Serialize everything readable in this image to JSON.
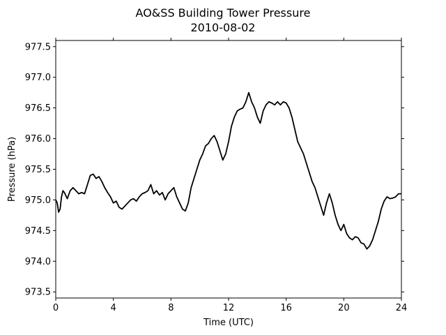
{
  "chart_data": {
    "type": "line",
    "title": "AO&SS Building Tower Pressure",
    "subtitle": "2010-08-02",
    "xlabel": "Time (UTC)",
    "ylabel": "Pressure (hPa)",
    "xlim": [
      0,
      24
    ],
    "ylim": [
      973.4,
      977.6
    ],
    "xticks": [
      0,
      4,
      8,
      12,
      16,
      20,
      24
    ],
    "xtick_labels": [
      "0",
      "4",
      "8",
      "12",
      "16",
      "20",
      "24"
    ],
    "yticks": [
      973.5,
      974.0,
      974.5,
      975.0,
      975.5,
      976.0,
      976.5,
      977.0,
      977.5
    ],
    "ytick_labels": [
      "973.5",
      "974.0",
      "974.5",
      "975.0",
      "975.5",
      "976.0",
      "976.5",
      "977.0",
      "977.5"
    ],
    "grid": false,
    "line_color": "#000000",
    "series": [
      {
        "x": [
          0.0,
          0.1,
          0.2,
          0.3,
          0.4,
          0.5,
          0.6,
          0.8,
          1.0,
          1.2,
          1.4,
          1.6,
          1.8,
          2.0,
          2.2,
          2.4,
          2.6,
          2.8,
          3.0,
          3.2,
          3.4,
          3.6,
          3.8,
          4.0,
          4.2,
          4.4,
          4.6,
          4.8,
          5.0,
          5.2,
          5.4,
          5.6,
          5.8,
          6.0,
          6.2,
          6.4,
          6.6,
          6.8,
          7.0,
          7.2,
          7.4,
          7.6,
          7.8,
          8.0,
          8.2,
          8.4,
          8.6,
          8.8,
          9.0,
          9.2,
          9.4,
          9.6,
          9.8,
          10.0,
          10.2,
          10.4,
          10.6,
          10.8,
          11.0,
          11.2,
          11.4,
          11.6,
          11.8,
          12.0,
          12.2,
          12.4,
          12.6,
          12.8,
          13.0,
          13.2,
          13.4,
          13.6,
          13.8,
          14.0,
          14.2,
          14.4,
          14.6,
          14.8,
          15.0,
          15.2,
          15.4,
          15.6,
          15.8,
          16.0,
          16.2,
          16.4,
          16.6,
          16.8,
          17.0,
          17.2,
          17.4,
          17.6,
          17.8,
          18.0,
          18.2,
          18.4,
          18.6,
          18.8,
          19.0,
          19.2,
          19.4,
          19.6,
          19.8,
          20.0,
          20.2,
          20.4,
          20.6,
          20.8,
          21.0,
          21.2,
          21.4,
          21.6,
          21.8,
          22.0,
          22.2,
          22.4,
          22.6,
          22.8,
          23.0,
          23.2,
          23.4,
          23.6,
          23.8,
          24.0
        ],
        "values": [
          975.0,
          974.95,
          974.8,
          974.85,
          975.05,
          975.15,
          975.12,
          975.02,
          975.15,
          975.2,
          975.15,
          975.1,
          975.12,
          975.1,
          975.25,
          975.4,
          975.42,
          975.35,
          975.38,
          975.3,
          975.2,
          975.12,
          975.05,
          974.95,
          974.98,
          974.88,
          974.85,
          974.9,
          974.95,
          975.0,
          975.02,
          974.98,
          975.05,
          975.1,
          975.12,
          975.15,
          975.25,
          975.1,
          975.15,
          975.08,
          975.12,
          975.0,
          975.1,
          975.15,
          975.2,
          975.05,
          974.95,
          974.85,
          974.82,
          974.95,
          975.2,
          975.35,
          975.5,
          975.65,
          975.75,
          975.88,
          975.92,
          976.0,
          976.05,
          975.95,
          975.8,
          975.65,
          975.75,
          975.95,
          976.2,
          976.35,
          976.45,
          976.48,
          976.5,
          976.6,
          976.75,
          976.6,
          976.5,
          976.35,
          976.25,
          976.45,
          976.55,
          976.6,
          976.58,
          976.55,
          976.6,
          976.55,
          976.6,
          976.58,
          976.5,
          976.35,
          976.15,
          975.95,
          975.85,
          975.75,
          975.6,
          975.45,
          975.3,
          975.2,
          975.05,
          974.9,
          974.75,
          974.95,
          975.1,
          974.95,
          974.75,
          974.6,
          974.5,
          974.6,
          974.45,
          974.38,
          974.35,
          974.4,
          974.38,
          974.3,
          974.28,
          974.2,
          974.25,
          974.35,
          974.5,
          974.65,
          974.85,
          974.98,
          975.05,
          975.02,
          975.03,
          975.05,
          975.1,
          975.1
        ]
      }
    ]
  }
}
